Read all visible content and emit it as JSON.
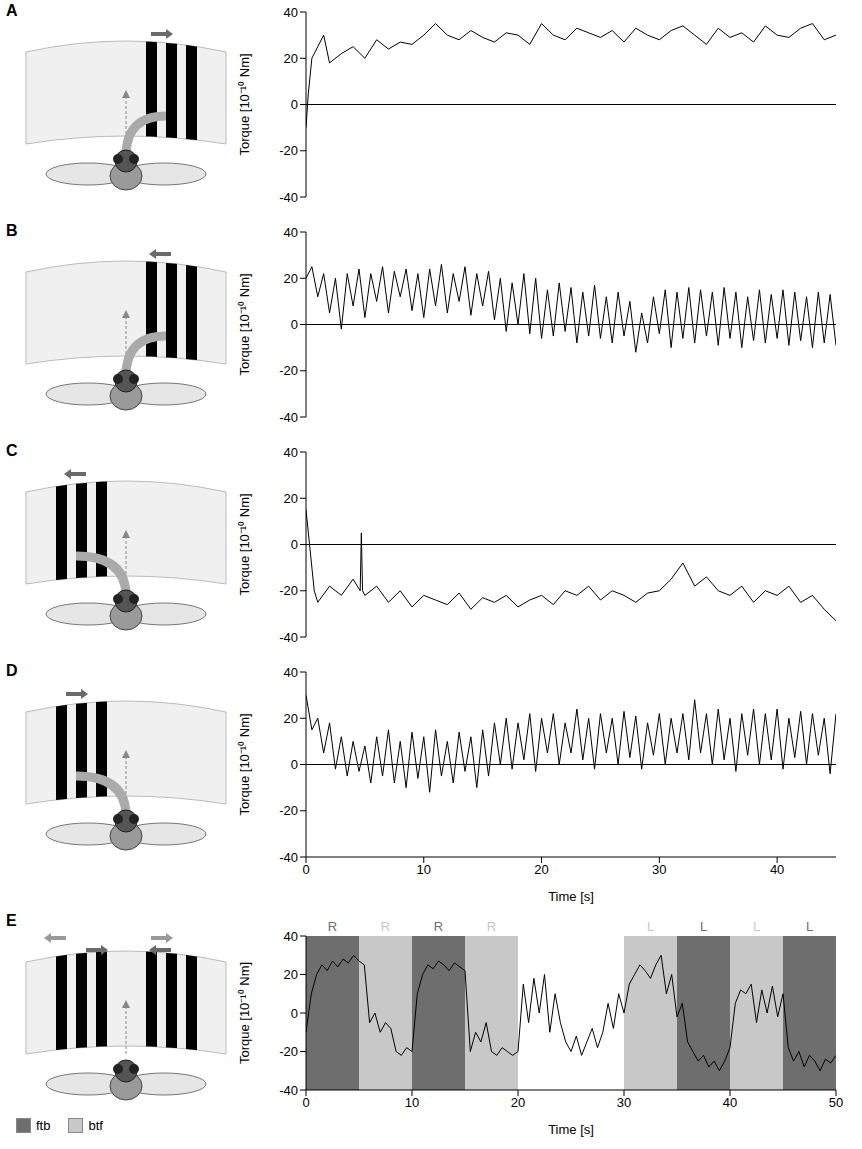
{
  "chart_data": [
    {
      "type": "line",
      "title": "A",
      "color": "#000000",
      "xlim": [
        0,
        45
      ],
      "ylim": [
        -40,
        40
      ],
      "yticks": [
        -40,
        -20,
        0,
        20,
        40
      ],
      "y_label": "Torque [10⁻¹⁰ Nm]",
      "hline": 0,
      "tick_labels": "y",
      "x": [
        0,
        0.2,
        0.5,
        1,
        1.5,
        2,
        3,
        4,
        5,
        6,
        7,
        8,
        9,
        10,
        11,
        12,
        13,
        14,
        15,
        16,
        17,
        18,
        19,
        20,
        21,
        22,
        23,
        24,
        25,
        26,
        27,
        28,
        29,
        30,
        31,
        32,
        33,
        34,
        35,
        36,
        37,
        38,
        39,
        40,
        41,
        42,
        43,
        44,
        45
      ],
      "values": [
        -10,
        5,
        20,
        25,
        30,
        18,
        22,
        25,
        20,
        28,
        24,
        27,
        26,
        30,
        35,
        30,
        28,
        32,
        29,
        27,
        31,
        30,
        26,
        35,
        30,
        28,
        33,
        31,
        29,
        32,
        27,
        33,
        30,
        28,
        32,
        34,
        30,
        26,
        33,
        29,
        31,
        27,
        34,
        30,
        29,
        33,
        35,
        28,
        30
      ]
    },
    {
      "type": "line",
      "title": "B",
      "color": "#000000",
      "xlim": [
        0,
        45
      ],
      "ylim": [
        -40,
        40
      ],
      "yticks": [
        -40,
        -20,
        0,
        20,
        40
      ],
      "y_label": "Torque [10⁻¹⁰ Nm]",
      "hline": 0,
      "tick_labels": "y",
      "x": [
        0,
        0.5,
        1,
        1.5,
        2,
        2.5,
        3,
        3.5,
        4,
        4.5,
        5,
        5.5,
        6,
        6.5,
        7,
        7.5,
        8,
        8.5,
        9,
        9.5,
        10,
        10.5,
        11,
        11.5,
        12,
        12.5,
        13,
        13.5,
        14,
        14.5,
        15,
        15.5,
        16,
        16.5,
        17,
        17.5,
        18,
        18.5,
        19,
        19.5,
        20,
        20.5,
        21,
        21.5,
        22,
        22.5,
        23,
        23.5,
        24,
        24.5,
        25,
        25.5,
        26,
        26.5,
        27,
        27.5,
        28,
        28.5,
        29,
        29.5,
        30,
        30.5,
        31,
        31.5,
        32,
        32.5,
        33,
        33.5,
        34,
        34.5,
        35,
        35.5,
        36,
        36.5,
        37,
        37.5,
        38,
        38.5,
        39,
        39.5,
        40,
        40.5,
        41,
        41.5,
        42,
        42.5,
        43,
        43.5,
        44,
        44.5,
        45
      ],
      "values": [
        20,
        25,
        12,
        22,
        5,
        20,
        -2,
        22,
        8,
        24,
        3,
        22,
        10,
        25,
        5,
        23,
        12,
        24,
        6,
        22,
        3,
        24,
        8,
        26,
        5,
        22,
        10,
        25,
        4,
        22,
        8,
        23,
        2,
        20,
        -3,
        18,
        0,
        22,
        -4,
        20,
        -6,
        15,
        -5,
        18,
        -3,
        16,
        -8,
        14,
        -5,
        17,
        -6,
        12,
        -8,
        14,
        -5,
        10,
        -12,
        5,
        -8,
        12,
        -4,
        15,
        -10,
        14,
        -6,
        16,
        -8,
        15,
        -5,
        14,
        -9,
        16,
        -6,
        14,
        -10,
        12,
        -7,
        15,
        -8,
        13,
        -6,
        15,
        -9,
        14,
        -7,
        12,
        -10,
        14,
        -8,
        13,
        -9
      ]
    },
    {
      "type": "line",
      "title": "C",
      "color": "#000000",
      "xlim": [
        0,
        45
      ],
      "ylim": [
        -40,
        40
      ],
      "yticks": [
        -40,
        -20,
        0,
        20,
        40
      ],
      "y_label": "Torque [10⁻¹⁰ Nm]",
      "hline": 0,
      "tick_labels": "y",
      "x": [
        0,
        0.3,
        0.7,
        1,
        2,
        3,
        4,
        4.6,
        4.7,
        4.8,
        5,
        6,
        7,
        8,
        9,
        10,
        11,
        12,
        13,
        14,
        15,
        16,
        17,
        18,
        19,
        20,
        21,
        22,
        23,
        24,
        25,
        26,
        27,
        28,
        29,
        30,
        31,
        32,
        33,
        34,
        35,
        36,
        37,
        38,
        39,
        40,
        41,
        42,
        43,
        44,
        45
      ],
      "values": [
        15,
        0,
        -20,
        -25,
        -18,
        -22,
        -15,
        -20,
        5,
        -20,
        -22,
        -18,
        -25,
        -20,
        -27,
        -22,
        -24,
        -26,
        -21,
        -28,
        -23,
        -25,
        -22,
        -27,
        -24,
        -22,
        -26,
        -20,
        -22,
        -18,
        -24,
        -20,
        -22,
        -25,
        -21,
        -20,
        -15,
        -8,
        -18,
        -14,
        -20,
        -22,
        -18,
        -25,
        -20,
        -22,
        -18,
        -25,
        -22,
        -28,
        -33
      ]
    },
    {
      "type": "line",
      "title": "D",
      "color": "#000000",
      "xlim": [
        0,
        45
      ],
      "xticks": [
        0,
        10,
        20,
        30,
        40
      ],
      "ylim": [
        -40,
        40
      ],
      "yticks": [
        -40,
        -20,
        0,
        20,
        40
      ],
      "y_label": "Torque [10⁻¹⁰ Nm]",
      "x_label": "Time [s]",
      "hline": 0,
      "x": [
        0,
        0.5,
        1,
        1.5,
        2,
        2.5,
        3,
        3.5,
        4,
        4.5,
        5,
        5.5,
        6,
        6.5,
        7,
        7.5,
        8,
        8.5,
        9,
        9.5,
        10,
        10.5,
        11,
        11.5,
        12,
        12.5,
        13,
        13.5,
        14,
        14.5,
        15,
        15.5,
        16,
        16.5,
        17,
        17.5,
        18,
        18.5,
        19,
        19.5,
        20,
        20.5,
        21,
        21.5,
        22,
        22.5,
        23,
        23.5,
        24,
        24.5,
        25,
        25.5,
        26,
        26.5,
        27,
        27.5,
        28,
        28.5,
        29,
        29.5,
        30,
        30.5,
        31,
        31.5,
        32,
        32.5,
        33,
        33.5,
        34,
        34.5,
        35,
        35.5,
        36,
        36.5,
        37,
        37.5,
        38,
        38.5,
        39,
        39.5,
        40,
        40.5,
        41,
        41.5,
        42,
        42.5,
        43,
        43.5,
        44,
        44.5,
        45
      ],
      "values": [
        30,
        15,
        20,
        5,
        18,
        -2,
        12,
        -5,
        10,
        -3,
        8,
        -8,
        12,
        -5,
        15,
        -8,
        10,
        -10,
        14,
        -6,
        12,
        -12,
        15,
        -5,
        10,
        -8,
        14,
        -3,
        12,
        -10,
        15,
        -5,
        18,
        0,
        20,
        -2,
        18,
        2,
        22,
        -3,
        20,
        5,
        22,
        0,
        18,
        5,
        24,
        2,
        20,
        -2,
        22,
        5,
        20,
        0,
        23,
        3,
        21,
        -2,
        18,
        4,
        22,
        0,
        20,
        5,
        22,
        2,
        28,
        5,
        22,
        0,
        24,
        2,
        20,
        -3,
        22,
        4,
        24,
        0,
        22,
        2,
        24,
        -2,
        20,
        3,
        23,
        0,
        22,
        4,
        20,
        -4,
        22
      ]
    },
    {
      "type": "line",
      "title": "E",
      "color": "#000000",
      "xlim": [
        0,
        50
      ],
      "xticks": [
        0,
        10,
        20,
        30,
        40,
        50
      ],
      "ylim": [
        -40,
        40
      ],
      "yticks": [
        -40,
        -20,
        0,
        20,
        40
      ],
      "y_label": "Torque [10⁻¹⁰ Nm]",
      "x_label": "Time [s]",
      "legend": "bottom left",
      "x": [
        0,
        0.5,
        1,
        1.5,
        2,
        2.5,
        3,
        3.5,
        4,
        4.5,
        5,
        5.5,
        6,
        6.5,
        7,
        7.5,
        8,
        8.5,
        9,
        9.5,
        10,
        10.5,
        11,
        11.5,
        12,
        12.5,
        13,
        13.5,
        14,
        14.5,
        15,
        15.5,
        16,
        16.5,
        17,
        17.5,
        18,
        18.5,
        19,
        19.5,
        20,
        20.5,
        21,
        21.5,
        22,
        22.5,
        23,
        23.5,
        24,
        24.5,
        25,
        25.5,
        26,
        26.5,
        27,
        27.5,
        28,
        28.5,
        29,
        29.5,
        30,
        30.5,
        31,
        31.5,
        32,
        32.5,
        33,
        33.5,
        34,
        34.5,
        35,
        35.5,
        36,
        36.5,
        37,
        37.5,
        38,
        38.5,
        39,
        39.5,
        40,
        40.5,
        41,
        41.5,
        42,
        42.5,
        43,
        43.5,
        44,
        44.5,
        45,
        45.5,
        46,
        46.5,
        47,
        47.5,
        48,
        48.5,
        49,
        49.5,
        50
      ],
      "values": [
        -10,
        10,
        20,
        25,
        22,
        27,
        24,
        28,
        26,
        30,
        27,
        25,
        -5,
        0,
        -10,
        -5,
        -8,
        -20,
        -22,
        -18,
        -20,
        10,
        20,
        25,
        23,
        27,
        25,
        22,
        26,
        24,
        22,
        -20,
        -10,
        -15,
        -5,
        -20,
        -22,
        -18,
        -20,
        -22,
        -20,
        15,
        -5,
        18,
        0,
        20,
        -10,
        10,
        -5,
        -15,
        -20,
        -12,
        -22,
        -15,
        -8,
        -18,
        -10,
        5,
        -8,
        10,
        0,
        15,
        20,
        25,
        22,
        18,
        25,
        30,
        10,
        20,
        -2,
        5,
        -15,
        -20,
        -25,
        -22,
        -28,
        -25,
        -30,
        -25,
        -18,
        5,
        12,
        10,
        15,
        -5,
        12,
        0,
        14,
        -2,
        10,
        -18,
        -25,
        -20,
        -28,
        -22,
        -25,
        -30,
        -24,
        -26,
        -22
      ],
      "regions": [
        {
          "start": 0,
          "end": 5,
          "label": "R",
          "kind": "ftb"
        },
        {
          "start": 5,
          "end": 10,
          "label": "R",
          "kind": "btf"
        },
        {
          "start": 10,
          "end": 15,
          "label": "R",
          "kind": "ftb"
        },
        {
          "start": 15,
          "end": 20,
          "label": "R",
          "kind": "btf"
        },
        {
          "start": 30,
          "end": 35,
          "label": "L",
          "kind": "btf"
        },
        {
          "start": 35,
          "end": 40,
          "label": "L",
          "kind": "ftb"
        },
        {
          "start": 40,
          "end": 45,
          "label": "L",
          "kind": "btf"
        },
        {
          "start": 45,
          "end": 50,
          "label": "L",
          "kind": "ftb"
        }
      ],
      "region_types": [
        {
          "name": "ftb",
          "color": "#6e6e6e"
        },
        {
          "name": "btf",
          "color": "#c8c8c8"
        }
      ]
    }
  ]
}
